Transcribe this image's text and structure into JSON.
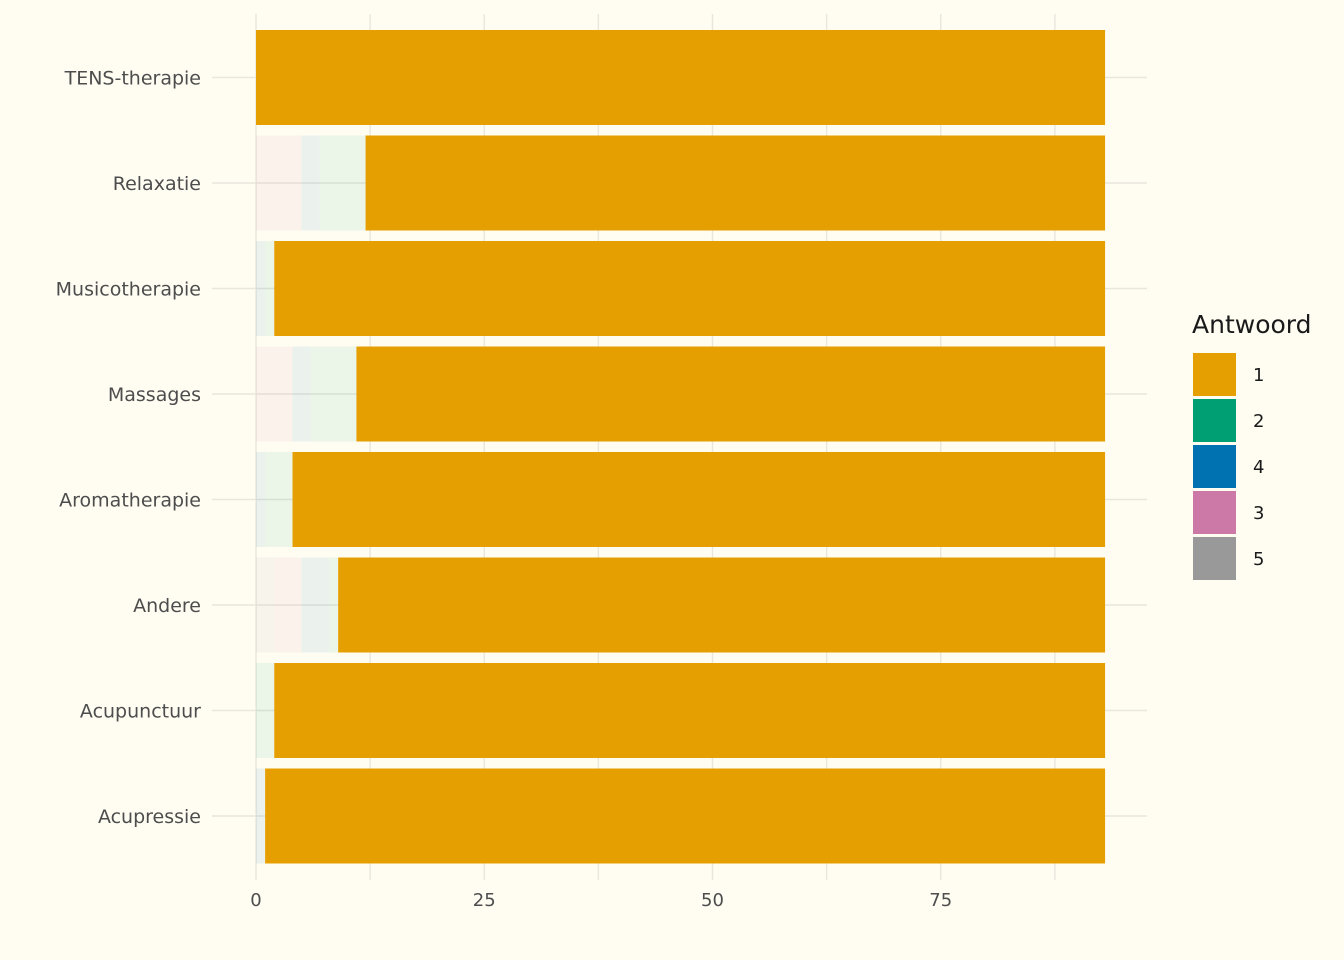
{
  "chart_data": {
    "type": "bar",
    "orientation": "horizontal",
    "stacked": true,
    "categories": [
      "TENS-therapie",
      "Relaxatie",
      "Musicotherapie",
      "Massages",
      "Aromatherapie",
      "Andere",
      "Acupunctuur",
      "Acupressie"
    ],
    "series": [
      {
        "name": "1",
        "color": "#E69F00",
        "values": [
          93,
          81,
          91,
          82,
          89,
          84,
          91,
          92
        ]
      },
      {
        "name": "2",
        "color": "#009E73",
        "values": [
          0,
          5,
          1,
          5,
          3,
          1,
          2,
          0
        ]
      },
      {
        "name": "4",
        "color": "#0072B2",
        "values": [
          0,
          2,
          1,
          2,
          1,
          3,
          0,
          1
        ]
      },
      {
        "name": "3",
        "color": "#CC79A7",
        "values": [
          0,
          5,
          0,
          4,
          0,
          3,
          0,
          0
        ]
      },
      {
        "name": "5",
        "color": "#999999",
        "values": [
          0,
          0,
          0,
          0,
          0,
          2,
          0,
          0
        ]
      }
    ],
    "stack_order": [
      "5",
      "3",
      "4",
      "2",
      "1"
    ],
    "faded_series": [
      "2",
      "4",
      "3",
      "5"
    ],
    "x_ticks": [
      0,
      25,
      50,
      75
    ],
    "xlim": [
      0,
      97.6
    ],
    "xlabel": "",
    "ylabel": "",
    "grid": true,
    "legend": {
      "title": "Antwoord",
      "position": "right",
      "entries": [
        "1",
        "2",
        "4",
        "3",
        "5"
      ]
    }
  }
}
